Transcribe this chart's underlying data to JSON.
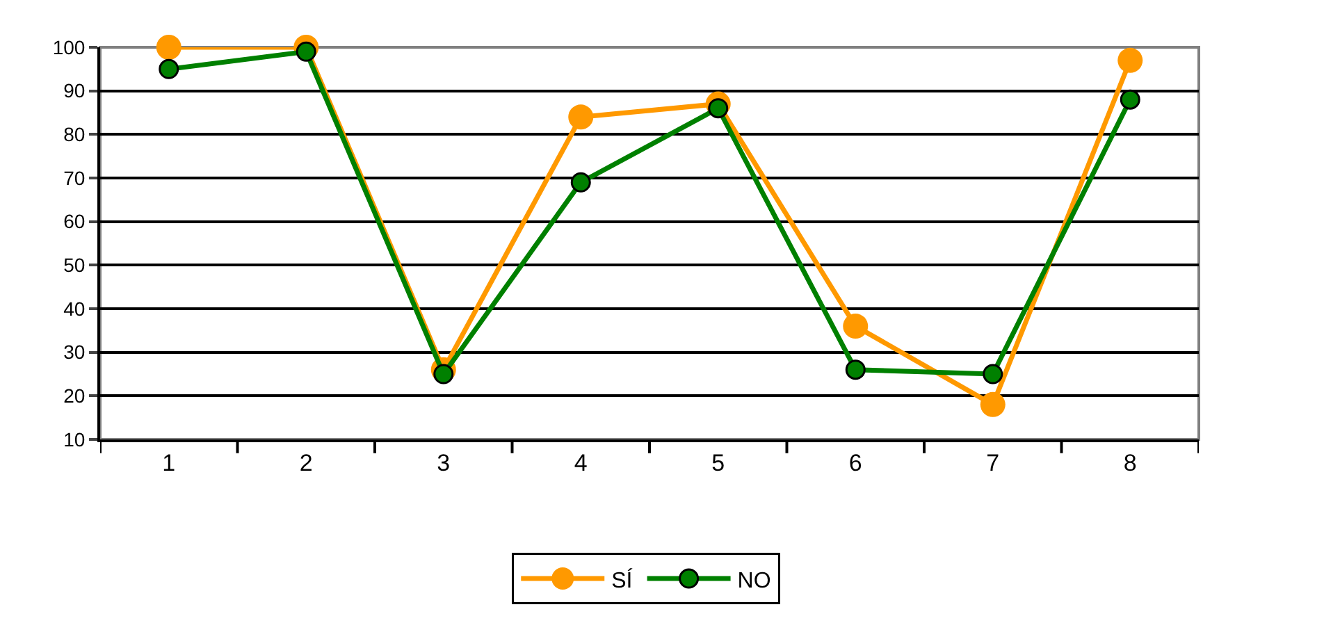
{
  "chart_data": {
    "type": "line",
    "categories": [
      "1",
      "2",
      "3",
      "4",
      "5",
      "6",
      "7",
      "8"
    ],
    "series": [
      {
        "name": "SÍ",
        "color": "#ff9900",
        "values": [
          100,
          100,
          26,
          84,
          87,
          36,
          18,
          97
        ]
      },
      {
        "name": "NO",
        "color": "#008000",
        "values": [
          95,
          99,
          25,
          69,
          86,
          26,
          25,
          88
        ]
      }
    ],
    "ylim": [
      10,
      100
    ],
    "yticks": [
      10,
      20,
      30,
      40,
      50,
      60,
      70,
      80,
      90,
      100
    ],
    "grid": "y",
    "legend": "bottom",
    "marker": "circle",
    "line_style": "solid"
  }
}
